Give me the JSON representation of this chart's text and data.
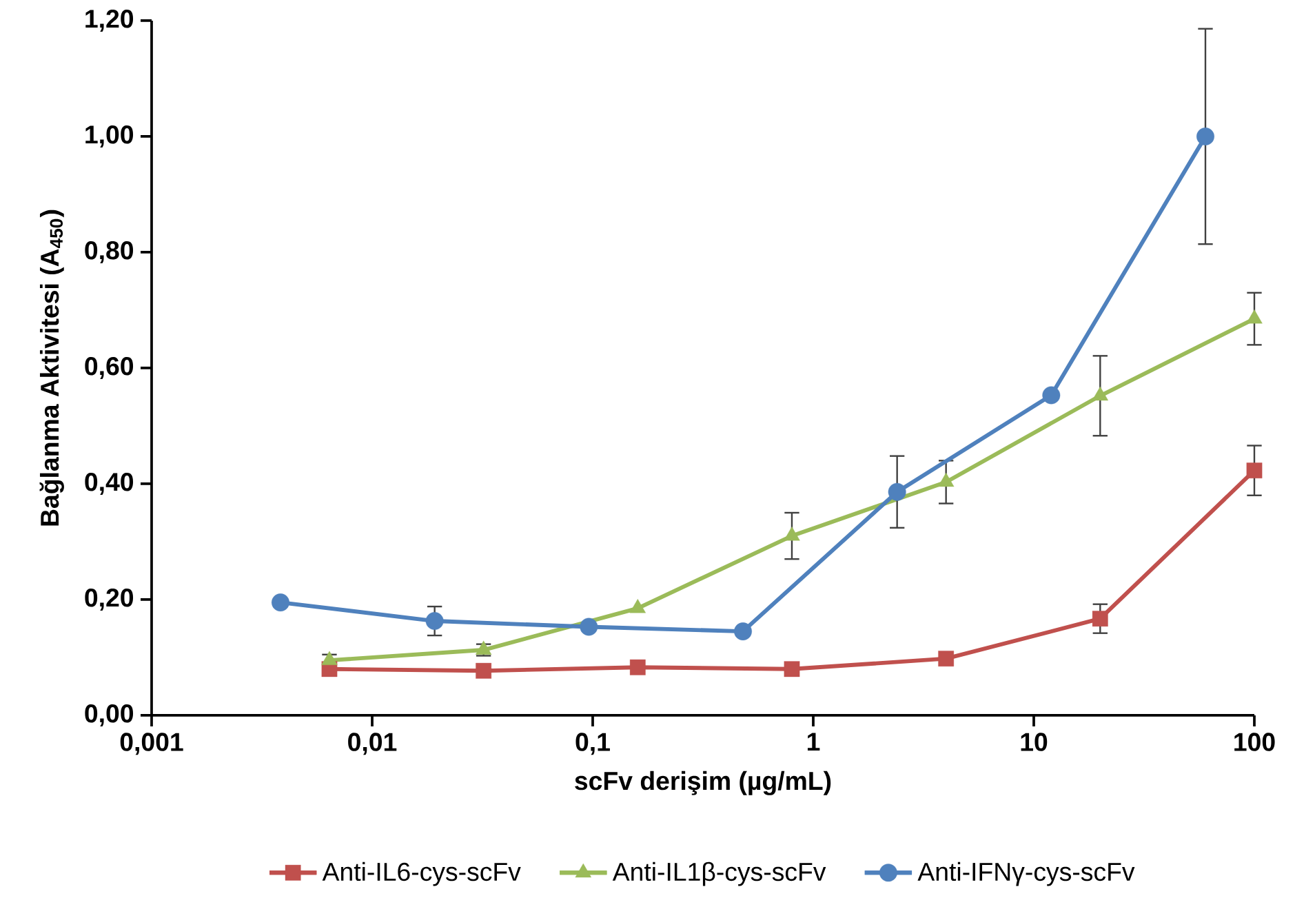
{
  "chart_data": {
    "type": "line",
    "xlabel": "scFv derişim (µg/mL)",
    "ylabel": "Bağlanma Aktivitesi (A$_{450}$)",
    "log": "x",
    "grid": false,
    "legend": "bottom",
    "xlim": [
      0.001,
      100
    ],
    "xticks": [
      {
        "value": 0.001,
        "label": "0,001"
      },
      {
        "value": 0.01,
        "label": "0,01"
      },
      {
        "value": 0.1,
        "label": "0,1"
      },
      {
        "value": 1,
        "label": "1"
      },
      {
        "value": 10,
        "label": "10"
      },
      {
        "value": 100,
        "label": "100"
      }
    ],
    "ylim": [
      0,
      1.2
    ],
    "yticks": [
      {
        "value": 0,
        "label": "0,00"
      },
      {
        "value": 0.2,
        "label": "0,20"
      },
      {
        "value": 0.4,
        "label": "0,40"
      },
      {
        "value": 0.6,
        "label": "0,60"
      },
      {
        "value": 0.8,
        "label": "0,80"
      },
      {
        "value": 1.0,
        "label": "1,00"
      },
      {
        "value": 1.2,
        "label": "1,20"
      }
    ],
    "series": [
      {
        "name": "Anti-IL6-cys-scFv",
        "color": "#c0504d",
        "marker": "square",
        "x": [
          0.0064,
          0.032,
          0.16,
          0.8,
          4,
          20,
          100
        ],
        "values": [
          0.08,
          0.077,
          0.083,
          0.08,
          0.098,
          0.167,
          0.423
        ],
        "errors": [
          null,
          null,
          null,
          null,
          null,
          0.025,
          0.043
        ]
      },
      {
        "name": "Anti-IL1β-cys-scFv",
        "color": "#9bbb59",
        "marker": "triangle",
        "x": [
          0.0064,
          0.032,
          0.16,
          0.8,
          4,
          20,
          100
        ],
        "values": [
          0.095,
          0.113,
          0.185,
          0.31,
          0.403,
          0.552,
          0.685
        ],
        "errors": [
          0.01,
          0.01,
          null,
          0.04,
          0.037,
          0.069,
          0.045
        ]
      },
      {
        "name": "Anti-IFNγ-cys-scFv",
        "color": "#4f81bd",
        "marker": "circle",
        "x": [
          0.00384,
          0.0192,
          0.096,
          0.48,
          2.4,
          12,
          60
        ],
        "values": [
          0.195,
          0.163,
          0.153,
          0.145,
          0.386,
          0.553,
          1.0
        ],
        "errors": [
          null,
          0.025,
          null,
          null,
          0.062,
          null,
          0.186
        ]
      }
    ]
  }
}
